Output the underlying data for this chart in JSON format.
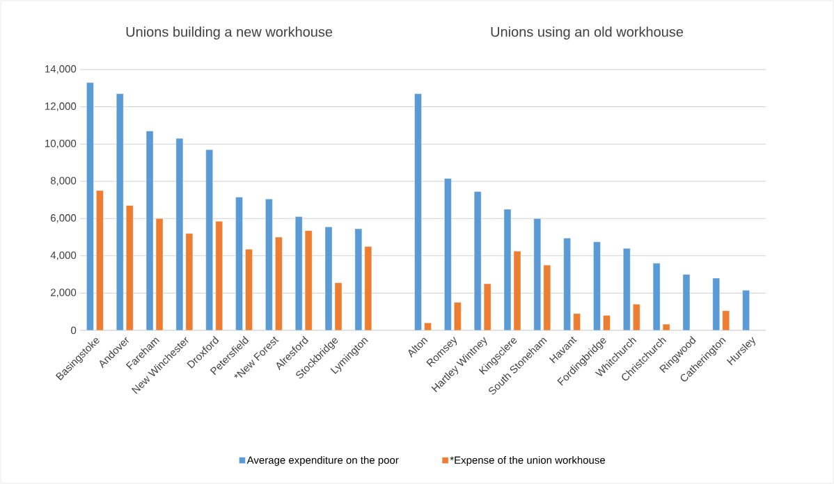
{
  "chart_data": {
    "type": "bar",
    "categories": [
      "Basingstoke",
      "Andover",
      "Fareham",
      "New Winchester",
      "Droxford",
      "Petersfield",
      "*New Forest",
      "Alresford",
      "Stockbridge",
      "Lymington",
      null,
      "Alton",
      "Romsey",
      "Hartley Wintney",
      "Kingsclere",
      "South Stoneham",
      "Havant",
      "Fordingbridge",
      "Whitchurch",
      "Christchurch",
      "Ringwood",
      "Catherington",
      "Hursley"
    ],
    "series": [
      {
        "name": "Average expenditure on the poor",
        "color": "#5b9bd5",
        "values": [
          13300,
          12700,
          10700,
          10300,
          9700,
          7150,
          7050,
          6100,
          5550,
          5450,
          null,
          12700,
          8150,
          7450,
          6500,
          6000,
          4950,
          4750,
          4400,
          3600,
          3000,
          2800,
          2150
        ]
      },
      {
        "name": "*Expense of the union workhouse",
        "color": "#ed7d31",
        "values": [
          7500,
          6700,
          6000,
          5200,
          5850,
          4350,
          5000,
          5350,
          2550,
          4500,
          null,
          400,
          1500,
          2500,
          4250,
          3500,
          900,
          800,
          1400,
          330,
          null,
          1050,
          null
        ]
      }
    ],
    "annotations": [
      "Unions building a new workhouse",
      "Unions using an old workhouse"
    ],
    "ylim": [
      0,
      14000
    ],
    "yticks": [
      0,
      {
        "value": 2000,
        "label": "2,000"
      },
      {
        "value": 4000,
        "label": "4,000"
      },
      {
        "value": 6000,
        "label": "6,000"
      },
      {
        "value": 8000,
        "label": "8,000"
      },
      {
        "value": 10000,
        "label": "10,000"
      },
      {
        "value": 12000,
        "label": "12,000"
      },
      {
        "value": 14000,
        "label": "14,000"
      }
    ],
    "grid": "y",
    "legend": "bottom"
  }
}
